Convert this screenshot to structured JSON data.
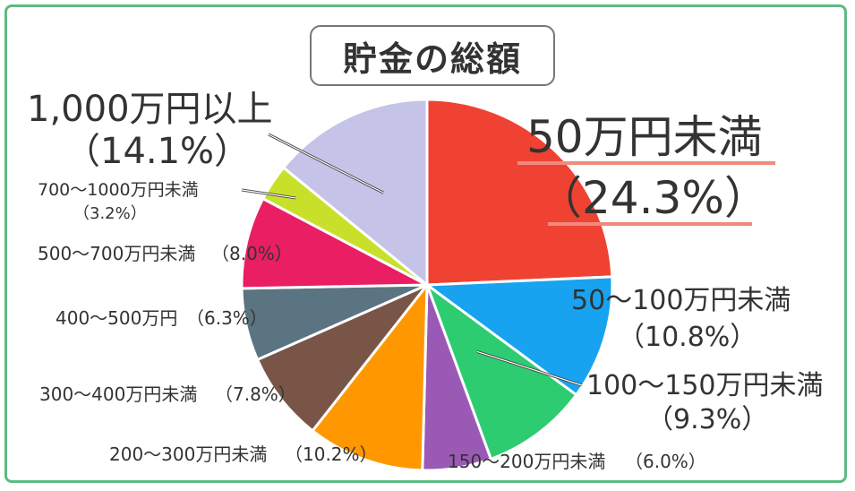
{
  "chart_data": {
    "type": "pie",
    "title": "貯金の総額",
    "slices": [
      {
        "label": "50万円未満",
        "pct_text": "（24.3%）",
        "value": 24.3,
        "color": "#f04232"
      },
      {
        "label": "50〜100万円未満",
        "pct_text": "（10.8%）",
        "value": 10.8,
        "color": "#18a3f0"
      },
      {
        "label": "100〜150万円未満",
        "pct_text": "（9.3%）",
        "value": 9.3,
        "color": "#2ecc71"
      },
      {
        "label": "150〜200万円未満",
        "pct_text": "（6.0%）",
        "value": 6.0,
        "color": "#9b59b6"
      },
      {
        "label": "200〜300万円未満",
        "pct_text": "（10.2%）",
        "value": 10.2,
        "color": "#ff9800"
      },
      {
        "label": "300〜400万円未満",
        "pct_text": "（7.8%）",
        "value": 7.8,
        "color": "#795548"
      },
      {
        "label": "400〜500万円",
        "pct_text": "（6.3%）",
        "value": 6.3,
        "color": "#5b7482"
      },
      {
        "label": "500〜700万円未満",
        "pct_text": "（8.0%）",
        "value": 8.0,
        "color": "#e91e63"
      },
      {
        "label": "700〜1000万円未満",
        "pct_text": "（3.2%）",
        "value": 3.2,
        "color": "#c9e02a"
      },
      {
        "label": "1,000万円以上",
        "pct_text": "（14.1%）",
        "value": 14.1,
        "color": "#c5c3e8"
      }
    ]
  }
}
